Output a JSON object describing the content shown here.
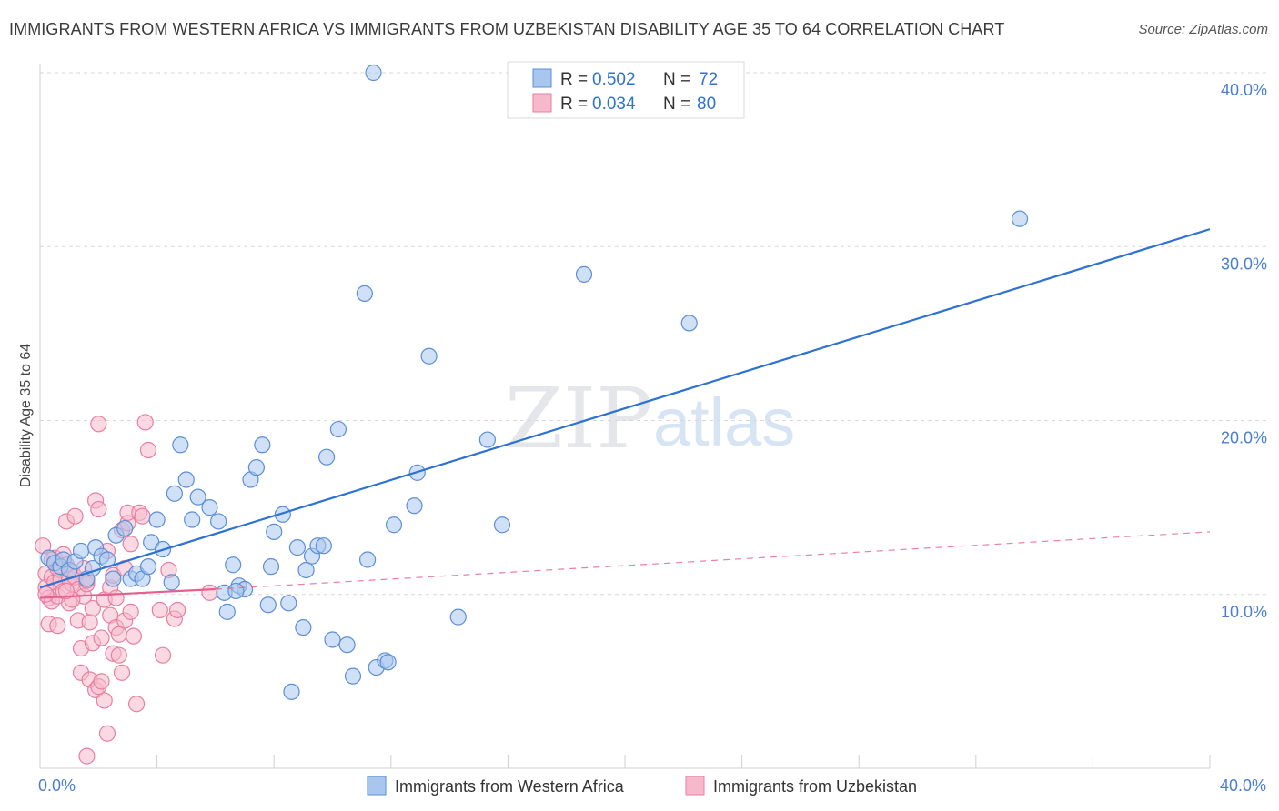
{
  "header": {
    "title": "IMMIGRANTS FROM WESTERN AFRICA VS IMMIGRANTS FROM UZBEKISTAN DISABILITY AGE 35 TO 64 CORRELATION CHART",
    "source": "Source: ZipAtlas.com"
  },
  "watermark": {
    "part1": "ZIP",
    "part2": "atlas"
  },
  "colors": {
    "blue_fill": "#a9c7ee",
    "blue_stroke": "#5b8fd6",
    "blue_line": "#2e72d2",
    "pink_fill": "#f6b9cc",
    "pink_stroke": "#e77fa2",
    "pink_line": "#e5608e",
    "tick_text": "#4a7fd0",
    "grid": "#d8d8d8"
  },
  "chart_data": {
    "type": "scatter",
    "ylabel": "Disability Age 35 to 64",
    "xlabel": "",
    "xlim": [
      0,
      40
    ],
    "ylim": [
      0,
      40
    ],
    "x_tick_labels": [
      "0.0%",
      "40.0%"
    ],
    "y_ticks": [
      {
        "value": 10,
        "label": "10.0%"
      },
      {
        "value": 20,
        "label": "20.0%"
      },
      {
        "value": 30,
        "label": "30.0%"
      },
      {
        "value": 40,
        "label": "40.0%"
      }
    ],
    "grid": "horizontal dashed",
    "legend_top": [
      {
        "r_label": "R =",
        "r_value": "0.502",
        "n_label": "N =",
        "n_value": "72",
        "series": 0
      },
      {
        "r_label": "R =",
        "r_value": "0.034",
        "n_label": "N =",
        "n_value": "80",
        "series": 1
      }
    ],
    "series": [
      {
        "name": "Immigrants from Western Africa",
        "color": "blue",
        "trend": {
          "x": [
            0,
            40
          ],
          "y": [
            10.4,
            31.0
          ],
          "style": "solid"
        },
        "points": [
          [
            0.3,
            12.1
          ],
          [
            0.5,
            11.8
          ],
          [
            0.7,
            11.6
          ],
          [
            0.8,
            12.0
          ],
          [
            1.0,
            11.4
          ],
          [
            1.2,
            11.9
          ],
          [
            1.4,
            12.5
          ],
          [
            1.6,
            10.9
          ],
          [
            1.8,
            11.5
          ],
          [
            1.9,
            12.7
          ],
          [
            2.1,
            12.2
          ],
          [
            2.3,
            12.0
          ],
          [
            2.5,
            10.9
          ],
          [
            2.6,
            13.4
          ],
          [
            2.9,
            13.8
          ],
          [
            3.1,
            10.9
          ],
          [
            3.3,
            11.2
          ],
          [
            3.5,
            10.9
          ],
          [
            3.7,
            11.6
          ],
          [
            3.8,
            13.0
          ],
          [
            4.0,
            14.3
          ],
          [
            4.2,
            12.6
          ],
          [
            4.5,
            10.7
          ],
          [
            4.6,
            15.8
          ],
          [
            4.8,
            18.6
          ],
          [
            5.0,
            16.6
          ],
          [
            5.2,
            14.3
          ],
          [
            5.4,
            15.6
          ],
          [
            5.8,
            15.0
          ],
          [
            6.1,
            14.2
          ],
          [
            6.3,
            10.1
          ],
          [
            6.4,
            9.0
          ],
          [
            6.6,
            11.7
          ],
          [
            6.8,
            10.5
          ],
          [
            7.0,
            10.3
          ],
          [
            7.2,
            16.6
          ],
          [
            7.4,
            17.3
          ],
          [
            7.6,
            18.6
          ],
          [
            7.8,
            9.4
          ],
          [
            7.9,
            11.6
          ],
          [
            8.0,
            13.6
          ],
          [
            8.3,
            14.6
          ],
          [
            8.5,
            9.5
          ],
          [
            8.6,
            4.4
          ],
          [
            8.8,
            12.7
          ],
          [
            9.0,
            8.1
          ],
          [
            9.1,
            11.4
          ],
          [
            9.3,
            12.2
          ],
          [
            9.5,
            12.8
          ],
          [
            9.7,
            12.8
          ],
          [
            10.0,
            7.4
          ],
          [
            10.2,
            19.5
          ],
          [
            10.5,
            7.1
          ],
          [
            10.7,
            5.3
          ],
          [
            11.1,
            27.3
          ],
          [
            11.5,
            5.8
          ],
          [
            11.2,
            12.0
          ],
          [
            11.8,
            6.2
          ],
          [
            11.9,
            6.1
          ],
          [
            12.1,
            14.0
          ],
          [
            12.8,
            15.1
          ],
          [
            12.9,
            17.0
          ],
          [
            13.3,
            23.7
          ],
          [
            14.3,
            8.7
          ],
          [
            15.3,
            18.9
          ],
          [
            15.8,
            14.0
          ],
          [
            18.6,
            28.4
          ],
          [
            22.2,
            25.6
          ],
          [
            33.5,
            31.6
          ],
          [
            11.4,
            40.0
          ],
          [
            9.8,
            17.9
          ],
          [
            6.7,
            10.2
          ]
        ]
      },
      {
        "name": "Immigrants from Uzbekistan",
        "color": "pink",
        "trend": {
          "x": [
            0,
            6
          ],
          "y": [
            9.8,
            10.3
          ],
          "style": "solid"
        },
        "trend_ext": {
          "x": [
            6,
            40
          ],
          "y": [
            10.3,
            13.6
          ],
          "style": "dashed"
        },
        "points": [
          [
            0.1,
            12.8
          ],
          [
            0.2,
            11.2
          ],
          [
            0.2,
            10.4
          ],
          [
            0.3,
            9.8
          ],
          [
            0.3,
            8.3
          ],
          [
            0.4,
            9.6
          ],
          [
            0.4,
            11.0
          ],
          [
            0.5,
            12.1
          ],
          [
            0.5,
            10.7
          ],
          [
            0.6,
            8.2
          ],
          [
            0.6,
            9.9
          ],
          [
            0.7,
            11.4
          ],
          [
            0.7,
            10.8
          ],
          [
            0.8,
            12.3
          ],
          [
            0.8,
            10.2
          ],
          [
            0.9,
            11.7
          ],
          [
            0.9,
            14.2
          ],
          [
            1.0,
            10.9
          ],
          [
            1.0,
            9.5
          ],
          [
            1.1,
            11.3
          ],
          [
            1.1,
            10.6
          ],
          [
            1.2,
            14.5
          ],
          [
            1.2,
            11.0
          ],
          [
            1.3,
            10.3
          ],
          [
            1.3,
            8.5
          ],
          [
            1.4,
            6.9
          ],
          [
            1.4,
            5.5
          ],
          [
            1.5,
            11.5
          ],
          [
            1.5,
            9.9
          ],
          [
            1.6,
            10.6
          ],
          [
            1.6,
            0.7
          ],
          [
            1.7,
            8.4
          ],
          [
            1.7,
            5.1
          ],
          [
            1.8,
            9.2
          ],
          [
            1.8,
            7.2
          ],
          [
            1.9,
            4.5
          ],
          [
            1.9,
            15.4
          ],
          [
            2.0,
            14.9
          ],
          [
            2.0,
            4.7
          ],
          [
            2.1,
            5.0
          ],
          [
            2.1,
            7.5
          ],
          [
            2.2,
            3.9
          ],
          [
            2.2,
            9.7
          ],
          [
            2.3,
            2.0
          ],
          [
            2.4,
            10.4
          ],
          [
            2.4,
            8.8
          ],
          [
            2.5,
            11.1
          ],
          [
            2.5,
            6.6
          ],
          [
            2.6,
            9.8
          ],
          [
            2.6,
            8.1
          ],
          [
            2.7,
            7.7
          ],
          [
            2.7,
            6.5
          ],
          [
            2.8,
            5.5
          ],
          [
            2.8,
            13.7
          ],
          [
            2.9,
            11.5
          ],
          [
            2.9,
            8.5
          ],
          [
            3.0,
            14.1
          ],
          [
            3.0,
            14.7
          ],
          [
            3.1,
            12.9
          ],
          [
            3.1,
            9.0
          ],
          [
            3.2,
            7.6
          ],
          [
            3.3,
            3.7
          ],
          [
            3.4,
            14.7
          ],
          [
            3.5,
            14.5
          ],
          [
            3.6,
            19.9
          ],
          [
            3.7,
            18.3
          ],
          [
            4.1,
            9.1
          ],
          [
            4.2,
            6.5
          ],
          [
            4.4,
            11.4
          ],
          [
            4.6,
            8.6
          ],
          [
            4.7,
            9.1
          ],
          [
            0.2,
            10.0
          ],
          [
            1.1,
            9.7
          ],
          [
            2.0,
            19.8
          ],
          [
            0.9,
            10.2
          ],
          [
            0.6,
            11.5
          ],
          [
            5.8,
            10.1
          ],
          [
            2.3,
            12.5
          ],
          [
            0.4,
            12.0
          ],
          [
            1.6,
            10.8
          ]
        ]
      }
    ]
  }
}
